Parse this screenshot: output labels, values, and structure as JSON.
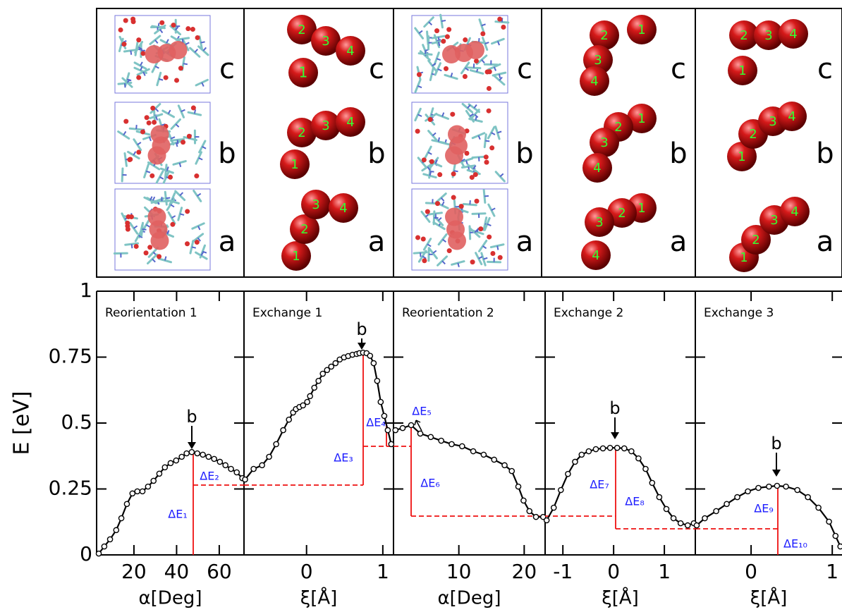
{
  "structures": [
    {
      "rows": [
        {
          "label": "c"
        },
        {
          "label": "b"
        },
        {
          "label": "a"
        }
      ]
    },
    {
      "rows": [
        {
          "label": "c",
          "atoms": [
            "2",
            "3",
            "4",
            "1"
          ]
        },
        {
          "label": "b",
          "atoms": [
            "1",
            "2",
            "3",
            "4"
          ]
        },
        {
          "label": "a",
          "atoms": [
            "1",
            "2",
            "3",
            "4"
          ]
        }
      ]
    },
    {
      "rows": [
        {
          "label": "c"
        },
        {
          "label": "b"
        },
        {
          "label": "a"
        }
      ]
    },
    {
      "rows": [
        {
          "label": "c",
          "atoms": [
            "2",
            "1",
            "3",
            "4"
          ]
        },
        {
          "label": "b",
          "atoms": [
            "1",
            "2",
            "3",
            "4"
          ]
        },
        {
          "label": "a",
          "atoms": [
            "1",
            "2",
            "3",
            "4"
          ]
        }
      ]
    },
    {
      "rows": [
        {
          "label": "c",
          "atoms": [
            "2",
            "3",
            "4",
            "1"
          ]
        },
        {
          "label": "b",
          "atoms": [
            "1",
            "2",
            "3",
            "4"
          ]
        },
        {
          "label": "a",
          "atoms": [
            "1",
            "2",
            "3",
            "4"
          ]
        }
      ]
    }
  ],
  "chart_data": [
    {
      "type": "line",
      "title": "Reorientation 1",
      "xlabel": "α[Deg]",
      "ylabel": "E [eV]",
      "xlim": [
        2.5,
        71.6
      ],
      "xticks": [
        20,
        40,
        60
      ],
      "ylim": [
        0,
        1
      ],
      "yticks": [
        0,
        0.25,
        0.5,
        0.75,
        1
      ],
      "x": [
        3.5,
        6.1,
        8.8,
        11.7,
        14.1,
        16.7,
        19.3,
        21.6,
        24.0,
        26.6,
        29.2,
        31.9,
        34.5,
        37.2,
        39.8,
        42.4,
        44.7,
        47.1,
        49.7,
        52.3,
        55.0,
        57.6,
        60.3,
        62.9,
        65.5,
        68.2,
        70.8
      ],
      "series": [
        {
          "color": "#000000",
          "values": [
            0.005,
            0.032,
            0.059,
            0.094,
            0.139,
            0.193,
            0.233,
            0.241,
            0.241,
            0.259,
            0.281,
            0.308,
            0.332,
            0.348,
            0.358,
            0.372,
            0.385,
            0.39,
            0.385,
            0.38,
            0.372,
            0.364,
            0.353,
            0.34,
            0.326,
            0.313,
            0.291
          ]
        }
      ],
      "annotations": [
        "b",
        "ΔE₁",
        "ΔE₂"
      ]
    },
    {
      "type": "line",
      "title": "Exchange 1",
      "xlabel": "ξ[Å]",
      "xlim": [
        -0.82,
        1.14
      ],
      "xticks": [
        0,
        1
      ],
      "ylim": [
        0,
        1
      ],
      "yticks": [
        0,
        0.25,
        0.5,
        0.75,
        1
      ],
      "x": [
        -0.806,
        -0.694,
        -0.583,
        -0.491,
        -0.398,
        -0.306,
        -0.231,
        -0.176,
        -0.139,
        -0.093,
        -0.046,
        0.009,
        0.046,
        0.102,
        0.157,
        0.213,
        0.269,
        0.324,
        0.38,
        0.435,
        0.491,
        0.546,
        0.602,
        0.657,
        0.694,
        0.741,
        0.787,
        0.833,
        0.88,
        0.926,
        0.972,
        1.019,
        1.065,
        1.111
      ],
      "series": [
        {
          "color": "#000000",
          "values": [
            0.286,
            0.326,
            0.34,
            0.372,
            0.42,
            0.473,
            0.513,
            0.54,
            0.553,
            0.561,
            0.567,
            0.58,
            0.602,
            0.634,
            0.66,
            0.687,
            0.701,
            0.714,
            0.727,
            0.741,
            0.749,
            0.754,
            0.759,
            0.762,
            0.765,
            0.767,
            0.765,
            0.755,
            0.727,
            0.66,
            0.58,
            0.527,
            0.473,
            0.42
          ]
        }
      ],
      "annotations": [
        "b",
        "ΔE₃",
        "ΔE₄"
      ]
    },
    {
      "type": "line",
      "title": "Reorientation 2",
      "xlabel": "α[Deg]",
      "xlim": [
        0,
        23.2
      ],
      "xticks": [
        10,
        20
      ],
      "ylim": [
        0,
        1
      ],
      "yticks": [
        0,
        0.25,
        0.5,
        0.75,
        1
      ],
      "x": [
        0.3,
        1.4,
        2.7,
        4.1,
        5.7,
        7.3,
        8.9,
        10.5,
        12.2,
        13.8,
        15.4,
        17.0,
        18.1,
        19.1,
        19.9,
        20.8,
        21.8,
        22.9
      ],
      "series": [
        {
          "color": "#000000",
          "values": [
            0.473,
            0.481,
            0.492,
            0.46,
            0.447,
            0.433,
            0.42,
            0.412,
            0.393,
            0.38,
            0.361,
            0.34,
            0.318,
            0.259,
            0.206,
            0.166,
            0.144,
            0.144
          ]
        }
      ],
      "annotations": [
        "ΔE₅",
        "ΔE₆"
      ]
    },
    {
      "type": "line",
      "title": "Exchange 2",
      "xlabel": "ξ[Å]",
      "xlim": [
        -1.35,
        1.61
      ],
      "xticks": [
        -1,
        0,
        1
      ],
      "ylim": [
        0,
        1
      ],
      "yticks": [
        0,
        0.25,
        0.5,
        0.75,
        1
      ],
      "x": [
        -1.32,
        -1.18,
        -1.04,
        -0.9,
        -0.76,
        -0.63,
        -0.49,
        -0.35,
        -0.21,
        -0.07,
        0.07,
        0.21,
        0.35,
        0.49,
        0.63,
        0.76,
        0.9,
        1.04,
        1.18,
        1.32,
        1.46,
        1.58
      ],
      "series": [
        {
          "color": "#000000",
          "values": [
            0.131,
            0.179,
            0.246,
            0.307,
            0.353,
            0.38,
            0.393,
            0.401,
            0.404,
            0.406,
            0.406,
            0.404,
            0.393,
            0.366,
            0.326,
            0.273,
            0.219,
            0.174,
            0.139,
            0.12,
            0.112,
            0.12
          ]
        }
      ],
      "annotations": [
        "b",
        "ΔE₇",
        "ΔE₈"
      ]
    },
    {
      "type": "line",
      "title": "Exchange 3",
      "xlabel": "ξ[Å]",
      "xlim": [
        -0.687,
        1.12
      ],
      "xticks": [
        0,
        1
      ],
      "ylim": [
        0,
        1
      ],
      "yticks": [
        0,
        0.25,
        0.5,
        0.75,
        1
      ],
      "x": [
        -0.67,
        -0.57,
        -0.43,
        -0.3,
        -0.17,
        -0.04,
        0.09,
        0.22,
        0.32,
        0.43,
        0.57,
        0.7,
        0.83,
        0.96,
        1.04,
        1.1
      ],
      "series": [
        {
          "color": "#000000",
          "values": [
            0.112,
            0.139,
            0.166,
            0.193,
            0.219,
            0.241,
            0.254,
            0.259,
            0.262,
            0.259,
            0.246,
            0.219,
            0.179,
            0.126,
            0.072,
            0.032
          ]
        }
      ],
      "annotations": [
        "b",
        "ΔE₉",
        "ΔE₁₀"
      ]
    }
  ]
}
